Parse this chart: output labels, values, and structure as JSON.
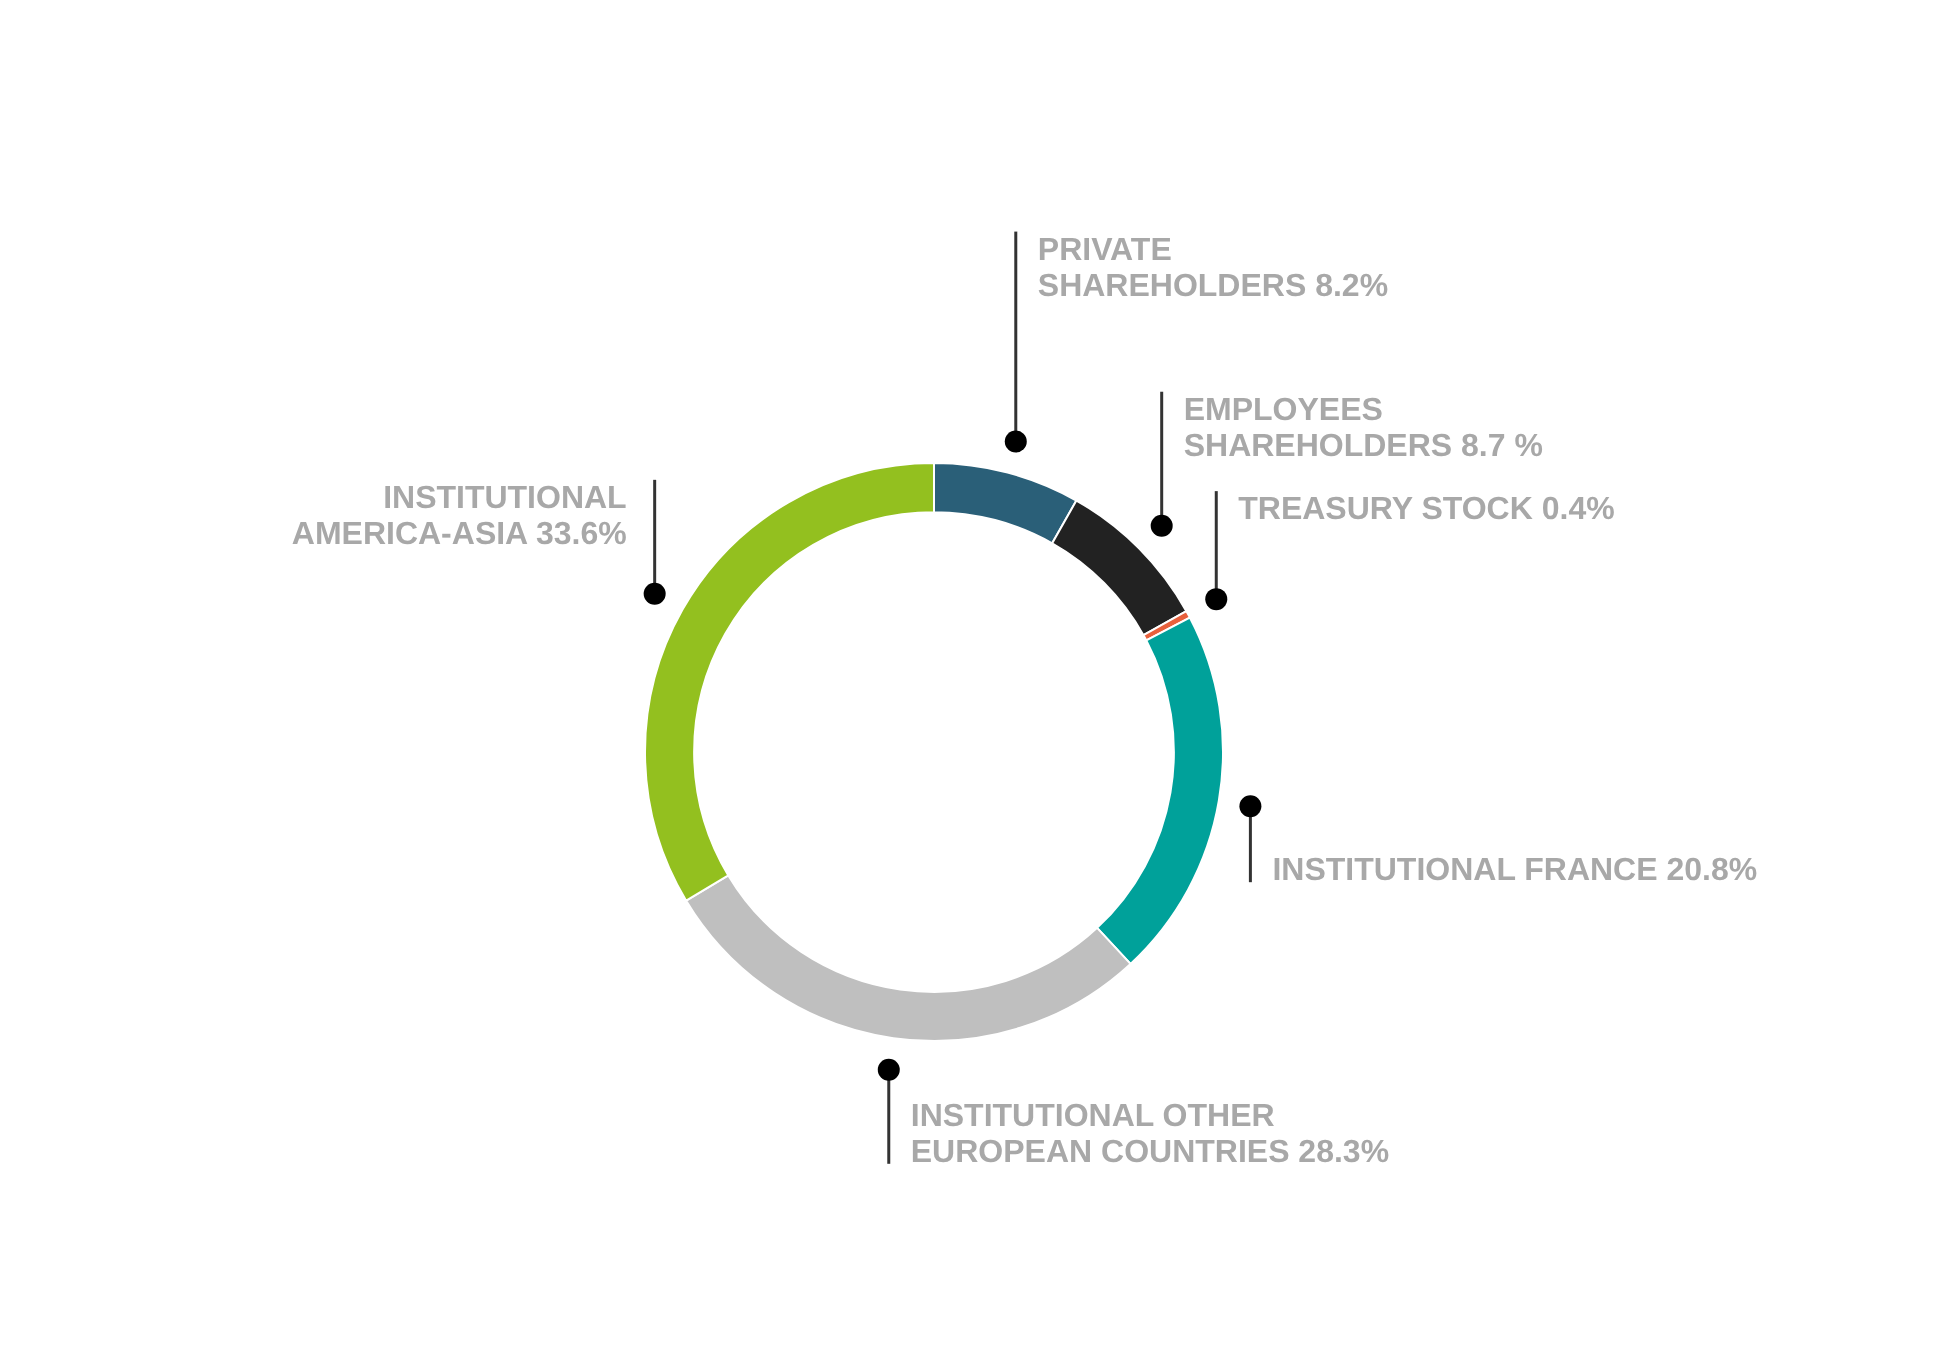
{
  "chart_data": {
    "type": "donut",
    "categories": [
      "PRIVATE SHAREHOLDERS",
      "EMPLOYEES SHAREHOLDERS",
      "TREASURY STOCK",
      "INSTITUTIONAL FRANCE",
      "INSTITUTIONAL OTHER EUROPEAN COUNTRIES",
      "INSTITUTIONAL AMERICA-ASIA"
    ],
    "values": [
      8.2,
      8.7,
      0.4,
      20.8,
      28.3,
      33.6
    ],
    "colors": [
      "#2a5f78",
      "#222222",
      "#e8603c",
      "#00a19a",
      "#bfbfbf",
      "#93c01f"
    ],
    "value_labels": [
      "8.2%",
      "8.7 %",
      "0.4%",
      "20.8%",
      "28.3%",
      "33.6%"
    ]
  }
}
